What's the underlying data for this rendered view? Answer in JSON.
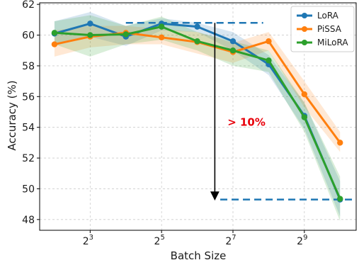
{
  "chart_data": {
    "type": "line",
    "xlabel": "Batch Size",
    "ylabel": "Accuracy (%)",
    "x_scale": "log2",
    "x": [
      4,
      8,
      16,
      32,
      64,
      128,
      256,
      512,
      1024
    ],
    "xlim": [
      3.0,
      1400
    ],
    "x_ticks": [
      {
        "value": 8,
        "base": "2",
        "exp": "3"
      },
      {
        "value": 32,
        "base": "2",
        "exp": "5"
      },
      {
        "value": 128,
        "base": "2",
        "exp": "7"
      },
      {
        "value": 512,
        "base": "2",
        "exp": "9"
      }
    ],
    "ylim": [
      47.3,
      62.1
    ],
    "y_ticks": [
      48,
      50,
      52,
      54,
      56,
      58,
      60,
      62
    ],
    "grid": true,
    "legend_position": "top-right",
    "series": [
      {
        "name": "LoRA",
        "color": "#1f77b4",
        "values": [
          60.1,
          60.75,
          59.9,
          60.75,
          60.55,
          59.6,
          58.1,
          54.75,
          49.3
        ],
        "band_upper": [
          60.9,
          61.5,
          60.6,
          61.1,
          60.8,
          60.2,
          58.7,
          55.6,
          50.5
        ],
        "band_lower": [
          59.3,
          59.9,
          59.3,
          60.3,
          60.2,
          59.0,
          57.4,
          53.9,
          48.2
        ]
      },
      {
        "name": "PiSSA",
        "color": "#ff7f0e",
        "values": [
          59.4,
          59.9,
          60.15,
          59.85,
          59.55,
          58.9,
          59.6,
          56.15,
          53.0
        ],
        "band_upper": [
          60.3,
          60.6,
          60.6,
          60.4,
          60.2,
          59.5,
          60.2,
          57.0,
          53.7
        ],
        "band_lower": [
          58.6,
          59.2,
          59.4,
          59.4,
          58.8,
          58.2,
          59.0,
          55.3,
          52.4
        ]
      },
      {
        "name": "MiLoRA",
        "color": "#2ca02c",
        "values": [
          60.15,
          60.0,
          60.05,
          60.55,
          59.6,
          59.0,
          58.35,
          54.65,
          49.35
        ],
        "band_upper": [
          60.9,
          61.3,
          60.6,
          61.2,
          60.2,
          59.6,
          59.0,
          55.6,
          50.8
        ],
        "band_lower": [
          59.4,
          58.6,
          59.4,
          59.7,
          59.0,
          58.0,
          57.6,
          53.7,
          47.9
        ]
      }
    ],
    "reference_lines": [
      {
        "y": 60.8,
        "x_from": 16,
        "x_to": 230,
        "color": "#1f77b4",
        "style": "dashed"
      },
      {
        "y": 49.3,
        "x_from": 100,
        "x_to": 1400,
        "color": "#1f77b4",
        "style": "dashed"
      }
    ],
    "arrow": {
      "x": 90,
      "y_from": 60.8,
      "y_to": 49.3
    },
    "annotation": {
      "text": "> 10%",
      "x": 115,
      "y": 54.1,
      "color": "#e8000b"
    }
  }
}
